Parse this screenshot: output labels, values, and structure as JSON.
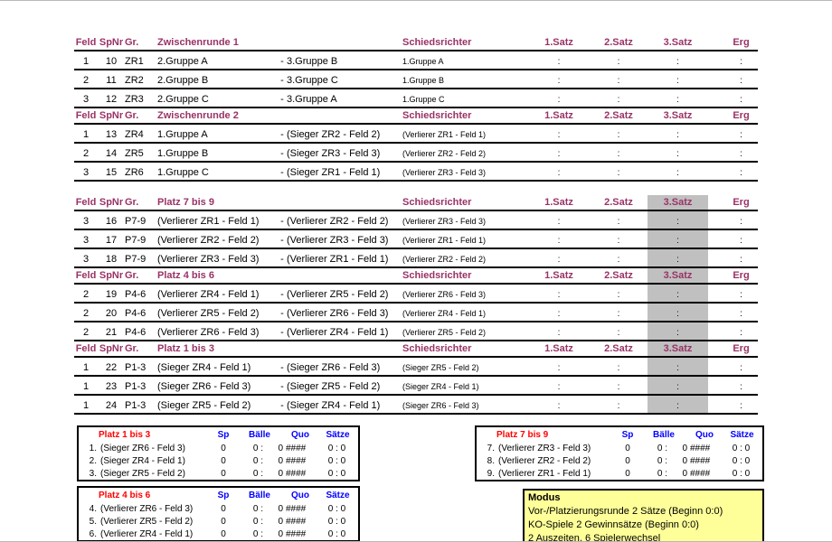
{
  "colors": {
    "header_text": "#993366",
    "gray_band": "#C0C0C0",
    "standings_title_red": "#FF0000",
    "standings_header_blue": "#0000FF",
    "modus_background": "#FFFF99"
  },
  "main_table": {
    "col_headers": {
      "feld": "Feld",
      "spnr": "SpNr",
      "gr": "Gr.",
      "schiedsrichter": "Schiedsrichter",
      "satz1": "1.Satz",
      "satz2": "2.Satz",
      "satz3": "3.Satz",
      "erg": "Erg"
    },
    "satz_placeholder": ":",
    "vs_separator": "-",
    "blocks": [
      {
        "sections": [
          {
            "title": "Zwischenrunde 1",
            "gray_satz3": false,
            "rows": [
              {
                "feld": "1",
                "spnr": "10",
                "gr": "ZR1",
                "team1": "2.Gruppe A",
                "team2": "3.Gruppe B",
                "schiedsrichter": "1.Gruppe A"
              },
              {
                "feld": "2",
                "spnr": "11",
                "gr": "ZR2",
                "team1": "2.Gruppe B",
                "team2": "3.Gruppe C",
                "schiedsrichter": "1.Gruppe B"
              },
              {
                "feld": "3",
                "spnr": "12",
                "gr": "ZR3",
                "team1": "2.Gruppe C",
                "team2": "3.Gruppe A",
                "schiedsrichter": "1.Gruppe C"
              }
            ]
          },
          {
            "title": "Zwischenrunde 2",
            "gray_satz3": false,
            "rows": [
              {
                "feld": "1",
                "spnr": "13",
                "gr": "ZR4",
                "team1": "1.Gruppe A",
                "team2": "(Sieger ZR2 - Feld 2)",
                "schiedsrichter": "(Verlierer ZR1 - Feld 1)"
              },
              {
                "feld": "2",
                "spnr": "14",
                "gr": "ZR5",
                "team1": "1.Gruppe B",
                "team2": "(Sieger ZR3 - Feld 3)",
                "schiedsrichter": "(Verlierer ZR2 - Feld 2)"
              },
              {
                "feld": "3",
                "spnr": "15",
                "gr": "ZR6",
                "team1": "1.Gruppe C",
                "team2": "(Sieger ZR1 - Feld 1)",
                "schiedsrichter": "(Verlierer ZR3 - Feld 3)"
              }
            ]
          }
        ]
      },
      {
        "sections": [
          {
            "title": "Platz 7 bis 9",
            "gray_satz3": true,
            "rows": [
              {
                "feld": "3",
                "spnr": "16",
                "gr": "P7-9",
                "team1": "(Verlierer ZR1 - Feld 1)",
                "team2": "(Verlierer ZR2 - Feld 2)",
                "schiedsrichter": "(Verlierer ZR3 - Feld 3)"
              },
              {
                "feld": "3",
                "spnr": "17",
                "gr": "P7-9",
                "team1": "(Verlierer ZR2 - Feld 2)",
                "team2": "(Verlierer ZR3 - Feld 3)",
                "schiedsrichter": "(Verlierer ZR1 - Feld 1)"
              },
              {
                "feld": "3",
                "spnr": "18",
                "gr": "P7-9",
                "team1": "(Verlierer ZR3 - Feld 3)",
                "team2": "(Verlierer ZR1 - Feld 1)",
                "schiedsrichter": "(Verlierer ZR2 - Feld 2)"
              }
            ]
          },
          {
            "title": "Platz 4 bis 6",
            "gray_satz3": true,
            "rows": [
              {
                "feld": "2",
                "spnr": "19",
                "gr": "P4-6",
                "team1": "(Verlierer ZR4 - Feld 1)",
                "team2": "(Verlierer ZR5 - Feld 2)",
                "schiedsrichter": "(Verlierer ZR6 - Feld 3)"
              },
              {
                "feld": "2",
                "spnr": "20",
                "gr": "P4-6",
                "team1": "(Verlierer ZR5 - Feld 2)",
                "team2": "(Verlierer ZR6 - Feld 3)",
                "schiedsrichter": "(Verlierer ZR4 - Feld 1)"
              },
              {
                "feld": "2",
                "spnr": "21",
                "gr": "P4-6",
                "team1": "(Verlierer ZR6 - Feld 3)",
                "team2": "(Verlierer ZR4 - Feld 1)",
                "schiedsrichter": "(Verlierer ZR5 - Feld 2)"
              }
            ]
          },
          {
            "title": "Platz 1 bis 3",
            "gray_satz3": true,
            "rows": [
              {
                "feld": "1",
                "spnr": "22",
                "gr": "P1-3",
                "team1": "(Sieger ZR4 - Feld 1)",
                "team2": "(Sieger ZR6 - Feld 3)",
                "schiedsrichter": "(Sieger ZR5 - Feld 2)"
              },
              {
                "feld": "1",
                "spnr": "23",
                "gr": "P1-3",
                "team1": "(Sieger ZR6 - Feld 3)",
                "team2": "(Sieger ZR5 - Feld 2)",
                "schiedsrichter": "(Sieger ZR4 - Feld 1)"
              },
              {
                "feld": "1",
                "spnr": "24",
                "gr": "P1-3",
                "team1": "(Sieger ZR5 - Feld 2)",
                "team2": "(Sieger ZR4 - Feld 1)",
                "schiedsrichter": "(Sieger ZR6 - Feld 3)"
              }
            ]
          }
        ]
      }
    ]
  },
  "standings_tables": [
    {
      "title": "Platz 1 bis 3",
      "col_headers": [
        "Sp",
        "Bälle",
        "Quo",
        "Sätze"
      ],
      "rows": [
        {
          "rank": "1.",
          "name": "(Sieger ZR6 - Feld 3)",
          "sp": "0",
          "baelle_for": "0 :",
          "baelle_against": "0",
          "quo": "####",
          "saetze": "0 : 0"
        },
        {
          "rank": "2.",
          "name": "(Sieger ZR4 - Feld 1)",
          "sp": "0",
          "baelle_for": "0 :",
          "baelle_against": "0",
          "quo": "####",
          "saetze": "0 : 0"
        },
        {
          "rank": "3.",
          "name": "(Sieger ZR5 - Feld 2)",
          "sp": "0",
          "baelle_for": "0 :",
          "baelle_against": "0",
          "quo": "####",
          "saetze": "0 : 0"
        }
      ]
    },
    {
      "title": "Platz 4 bis 6",
      "col_headers": [
        "Sp",
        "Bälle",
        "Quo",
        "Sätze"
      ],
      "rows": [
        {
          "rank": "4.",
          "name": "(Verlierer ZR6 - Feld 3)",
          "sp": "0",
          "baelle_for": "0 :",
          "baelle_against": "0",
          "quo": "####",
          "saetze": "0 : 0"
        },
        {
          "rank": "5.",
          "name": "(Verlierer ZR5 - Feld 2)",
          "sp": "0",
          "baelle_for": "0 :",
          "baelle_against": "0",
          "quo": "####",
          "saetze": "0 : 0"
        },
        {
          "rank": "6.",
          "name": "(Verlierer ZR4 - Feld 1)",
          "sp": "0",
          "baelle_for": "0 :",
          "baelle_against": "0",
          "quo": "####",
          "saetze": "0 : 0"
        }
      ]
    },
    {
      "title": "Platz 7 bis 9",
      "col_headers": [
        "Sp",
        "Bälle",
        "Quo",
        "Sätze"
      ],
      "rows": [
        {
          "rank": "7.",
          "name": "(Verlierer ZR3 - Feld 3)",
          "sp": "0",
          "baelle_for": "0 :",
          "baelle_against": "0",
          "quo": "####",
          "saetze": "0 : 0"
        },
        {
          "rank": "8.",
          "name": "(Verlierer ZR2 - Feld 2)",
          "sp": "0",
          "baelle_for": "0 :",
          "baelle_against": "0",
          "quo": "####",
          "saetze": "0 : 0"
        },
        {
          "rank": "9.",
          "name": "(Verlierer ZR1 - Feld 1)",
          "sp": "0",
          "baelle_for": "0 :",
          "baelle_against": "0",
          "quo": "####",
          "saetze": "0 : 0"
        }
      ]
    }
  ],
  "modus": {
    "title": "Modus",
    "lines": [
      "Vor-/Platzierungsrunde 2 Sätze (Beginn 0:0)",
      "KO-Spiele 2 Gewinnsätze (Beginn 0:0)",
      "2 Auszeiten, 6 Spielerwechsel"
    ]
  }
}
